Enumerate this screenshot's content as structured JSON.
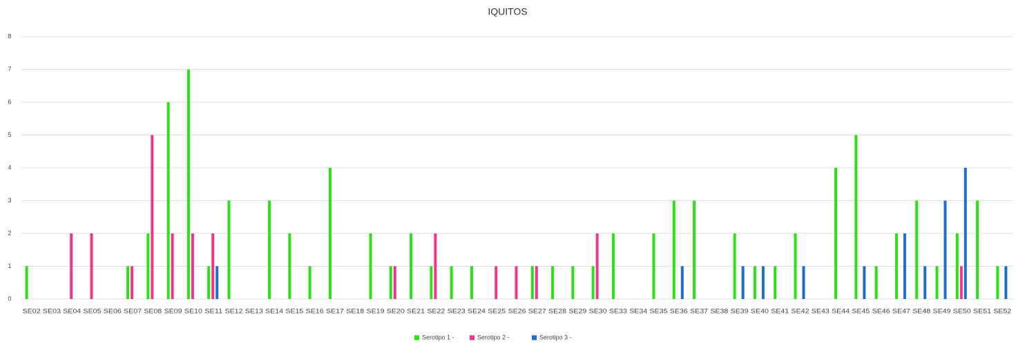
{
  "chart_data": {
    "type": "bar",
    "title": "IQUITOS",
    "categories": [
      "SE02",
      "SE03",
      "SE04",
      "SE05",
      "SE06",
      "SE07",
      "SE08",
      "SE09",
      "SE10",
      "SE11",
      "SE12",
      "SE13",
      "SE14",
      "SE15",
      "SE16",
      "SE17",
      "SE18",
      "SE19",
      "SE20",
      "SE21",
      "SE22",
      "SE23",
      "SE24",
      "SE25",
      "SE26",
      "SE27",
      "SE28",
      "SE29",
      "SE30",
      "SE33",
      "SE34",
      "SE35",
      "SE36",
      "SE37",
      "SE38",
      "SE39",
      "SE40",
      "SE41",
      "SE42",
      "SE43",
      "SE44",
      "SE45",
      "SE46",
      "SE47",
      "SE48",
      "SE49",
      "SE50",
      "SE51",
      "SE52"
    ],
    "series": [
      {
        "name": "Serotipo 1 -",
        "color": "#2ee01a",
        "values": [
          1,
          0,
          0,
          0,
          0,
          1,
          2,
          6,
          7,
          1,
          3,
          0,
          3,
          2,
          1,
          4,
          0,
          2,
          1,
          2,
          1,
          1,
          1,
          0,
          0,
          1,
          1,
          1,
          1,
          2,
          0,
          2,
          3,
          3,
          0,
          2,
          1,
          1,
          2,
          0,
          4,
          5,
          1,
          2,
          3,
          1,
          2,
          3,
          1
        ]
      },
      {
        "name": "Serotipo 2 -",
        "color": "#f0368c",
        "values": [
          0,
          0,
          2,
          2,
          0,
          1,
          5,
          2,
          2,
          2,
          0,
          0,
          0,
          0,
          0,
          0,
          0,
          0,
          1,
          0,
          2,
          0,
          0,
          1,
          1,
          1,
          0,
          0,
          2,
          0,
          0,
          0,
          0,
          0,
          0,
          0,
          0,
          0,
          0,
          0,
          0,
          0,
          0,
          0,
          0,
          0,
          1,
          0,
          0
        ]
      },
      {
        "name": "Serotipo 3 -",
        "color": "#1f6fc5",
        "values": [
          0,
          0,
          0,
          0,
          0,
          0,
          0,
          0,
          0,
          1,
          0,
          0,
          0,
          0,
          0,
          0,
          0,
          0,
          0,
          0,
          0,
          0,
          0,
          0,
          0,
          0,
          0,
          0,
          0,
          0,
          0,
          0,
          1,
          0,
          0,
          1,
          1,
          0,
          1,
          0,
          0,
          1,
          0,
          2,
          1,
          3,
          4,
          0,
          1
        ]
      }
    ],
    "ylim": [
      0,
      8
    ],
    "yticks": [
      0,
      1,
      2,
      3,
      4,
      5,
      6,
      7,
      8
    ],
    "grid": true,
    "legend": "bottom"
  }
}
